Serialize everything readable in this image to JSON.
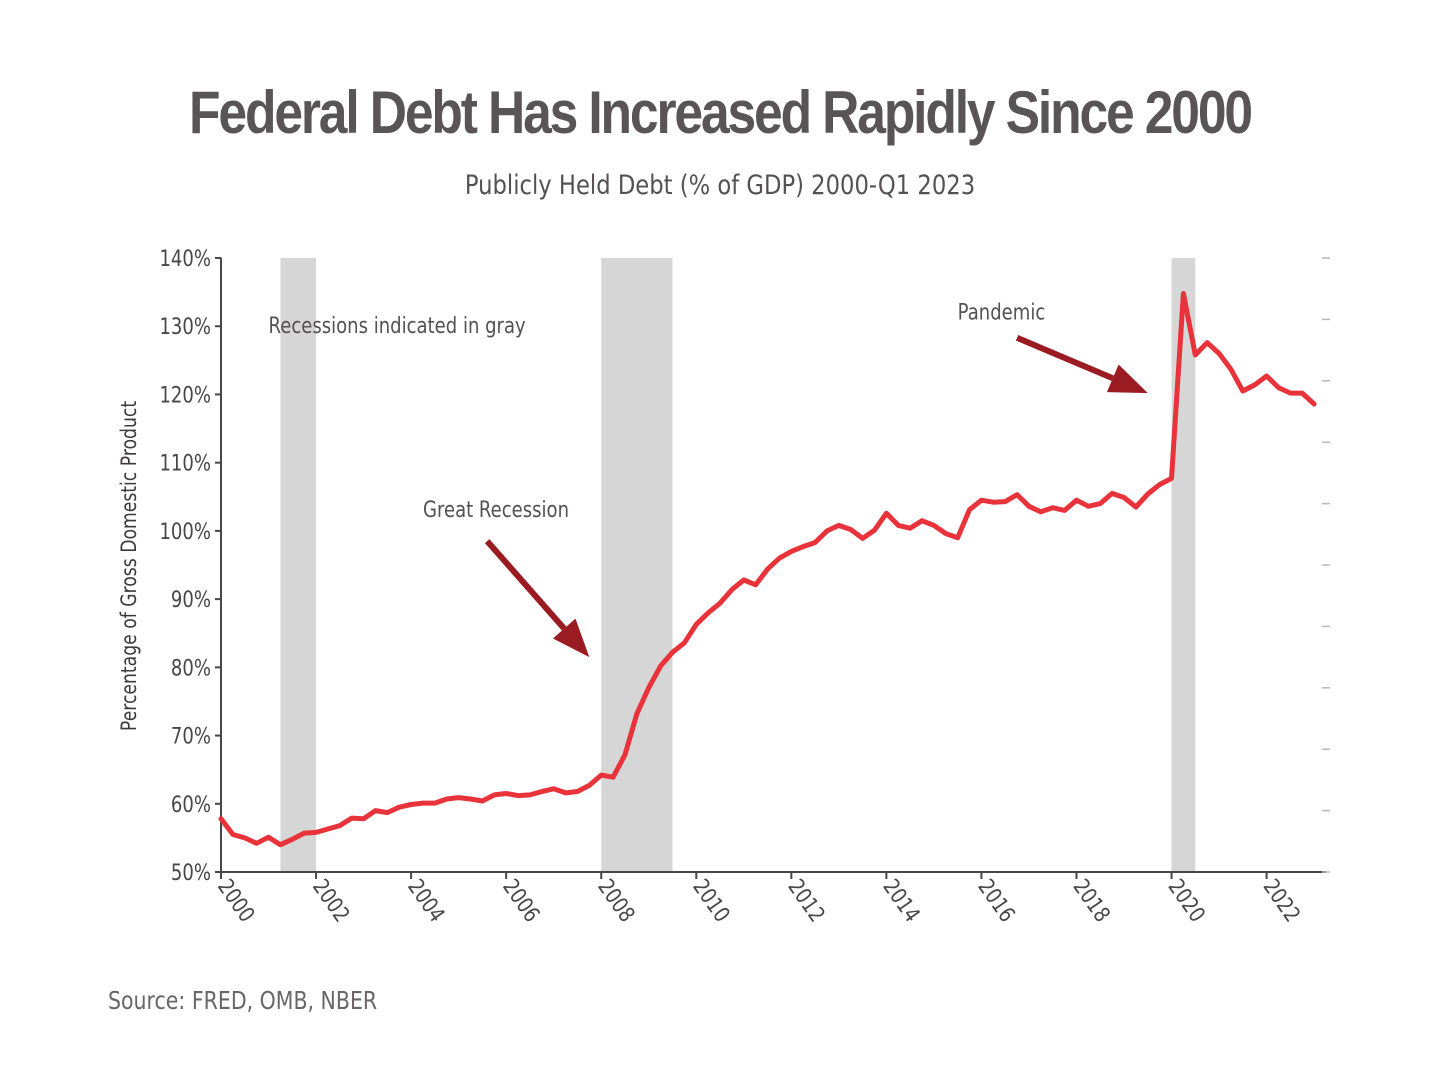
{
  "chart_data": {
    "type": "line",
    "title": "Federal Debt Has Increased Rapidly Since 2000",
    "subtitle": "Publicly Held Debt (% of GDP) 2000-Q1 2023",
    "ylabel": "Percentage of Gross Domestic Product",
    "xlabel": "",
    "source": "Source: FRED, OMB, NBER",
    "xlim": [
      2000,
      2023.25
    ],
    "ylim": [
      50,
      140
    ],
    "yticks": [
      50,
      60,
      70,
      80,
      90,
      100,
      110,
      120,
      130,
      140
    ],
    "ytick_labels": [
      "50%",
      "60%",
      "70%",
      "80%",
      "90%",
      "100%",
      "110%",
      "120%",
      "130%",
      "140%"
    ],
    "xticks": [
      2000,
      2002,
      2004,
      2006,
      2008,
      2010,
      2012,
      2014,
      2016,
      2018,
      2020,
      2022
    ],
    "xtick_labels": [
      "2000",
      "2002",
      "2004",
      "2006",
      "2008",
      "2010",
      "2012",
      "2014",
      "2016",
      "2018",
      "2020",
      "2022"
    ],
    "grid": false,
    "line_color": "#e8333a",
    "recession_color": "#d6d6d6",
    "arrow_color": "#9b1b22",
    "recessions": [
      {
        "start": 2001.25,
        "end": 2002.0
      },
      {
        "start": 2008.0,
        "end": 2009.5
      },
      {
        "start": 2020.0,
        "end": 2020.5
      }
    ],
    "annotations": [
      {
        "text": "Recessions indicated in gray",
        "x": 2001.0,
        "y": 129
      },
      {
        "text": "Great Recession",
        "x": 2004.25,
        "y": 102
      },
      {
        "text": "Pandemic",
        "x": 2015.5,
        "y": 131
      }
    ],
    "arrows": [
      {
        "from": [
          2005.6,
          98.5
        ],
        "to": [
          2007.75,
          81.5
        ]
      },
      {
        "from": [
          2016.75,
          128.3
        ],
        "to": [
          2019.5,
          120.2
        ]
      }
    ],
    "series": [
      {
        "x": [
          2000.0,
          2000.25,
          2000.5,
          2000.75,
          2001.0,
          2001.25,
          2001.5,
          2001.75,
          2002.0,
          2002.25,
          2002.5,
          2002.75,
          2003.0,
          2003.25,
          2003.5,
          2003.75,
          2004.0,
          2004.25,
          2004.5,
          2004.75,
          2005.0,
          2005.25,
          2005.5,
          2005.75,
          2006.0,
          2006.25,
          2006.5,
          2006.75,
          2007.0,
          2007.25,
          2007.5,
          2007.75,
          2008.0,
          2008.25,
          2008.5,
          2008.75,
          2009.0,
          2009.25,
          2009.5,
          2009.75,
          2010.0,
          2010.25,
          2010.5,
          2010.75,
          2011.0,
          2011.25,
          2011.5,
          2011.75,
          2012.0,
          2012.25,
          2012.5,
          2012.75,
          2013.0,
          2013.25,
          2013.5,
          2013.75,
          2014.0,
          2014.25,
          2014.5,
          2014.75,
          2015.0,
          2015.25,
          2015.5,
          2015.75,
          2016.0,
          2016.25,
          2016.5,
          2016.75,
          2017.0,
          2017.25,
          2017.5,
          2017.75,
          2018.0,
          2018.25,
          2018.5,
          2018.75,
          2019.0,
          2019.25,
          2019.5,
          2019.75,
          2020.0,
          2020.25,
          2020.5,
          2020.75,
          2021.0,
          2021.25,
          2021.5,
          2021.75,
          2022.0,
          2022.25,
          2022.5,
          2022.75,
          2023.0
        ],
        "values": [
          57.8,
          55.5,
          55.0,
          54.2,
          55.1,
          54.0,
          54.8,
          55.7,
          55.8,
          56.3,
          56.8,
          57.9,
          57.8,
          59.0,
          58.7,
          59.5,
          59.9,
          60.1,
          60.1,
          60.7,
          60.9,
          60.7,
          60.4,
          61.3,
          61.5,
          61.2,
          61.3,
          61.8,
          62.2,
          61.6,
          61.8,
          62.7,
          64.2,
          63.9,
          67.2,
          73.2,
          77.0,
          80.2,
          82.2,
          83.6,
          86.3,
          88.0,
          89.4,
          91.4,
          92.8,
          92.1,
          94.4,
          96.0,
          97.0,
          97.7,
          98.3,
          100.0,
          100.8,
          100.2,
          98.9,
          100.1,
          102.6,
          100.8,
          100.4,
          101.5,
          100.8,
          99.6,
          99.0,
          103.1,
          104.5,
          104.2,
          104.3,
          105.3,
          103.6,
          102.8,
          103.4,
          103.0,
          104.5,
          103.6,
          104.0,
          105.5,
          104.9,
          103.5,
          105.4,
          106.8,
          107.7,
          134.8,
          125.8,
          127.6,
          126.0,
          123.7,
          120.5,
          121.4,
          122.7,
          121.0,
          120.2,
          120.2,
          118.6
        ]
      }
    ]
  }
}
